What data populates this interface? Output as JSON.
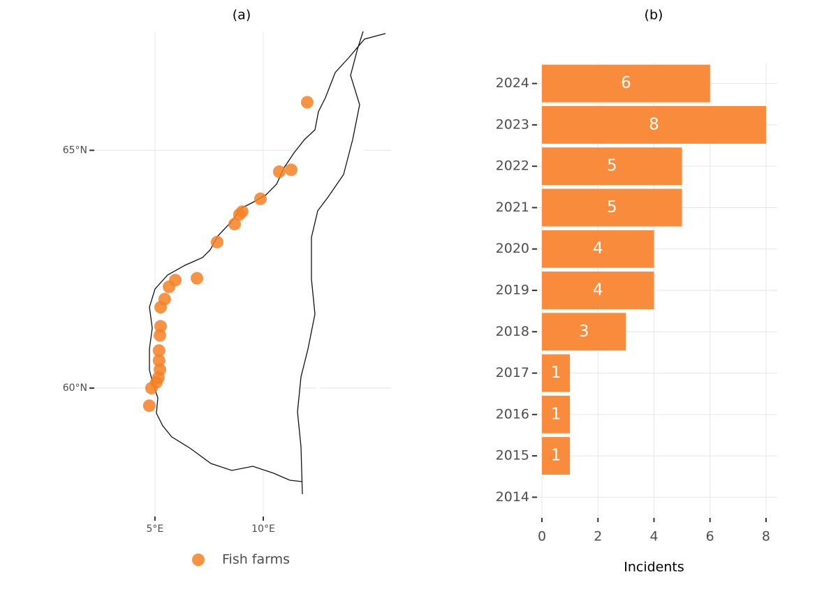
{
  "chart_data": [
    {
      "type": "scatter",
      "title": "(a)",
      "x": [
        12.03,
        10.74,
        11.29,
        9.87,
        9.03,
        8.9,
        8.68,
        7.87,
        6.94,
        5.94,
        5.65,
        5.45,
        5.26,
        5.26,
        5.23,
        5.19,
        5.19,
        5.23,
        5.16,
        5.06,
        4.84,
        4.74
      ],
      "series": [
        {
          "name": "Fish farms",
          "color": "#f58025",
          "values": [
            66.01,
            64.55,
            64.59,
            63.98,
            63.71,
            63.65,
            63.45,
            63.07,
            62.31,
            62.27,
            62.13,
            61.87,
            61.7,
            61.3,
            61.11,
            60.79,
            60.58,
            60.39,
            60.22,
            60.12,
            60.0,
            59.63
          ]
        }
      ],
      "xlim": [
        2.2,
        15.9
      ],
      "ylim": [
        57.3,
        67.5
      ],
      "xticks": [
        {
          "value": 5,
          "label": "5°E"
        },
        {
          "value": 10,
          "label": "10°E"
        }
      ],
      "yticks": [
        {
          "value": 60,
          "label": "60°N"
        },
        {
          "value": 65,
          "label": "65°N"
        }
      ],
      "grid": true,
      "legend": "bottom"
    },
    {
      "type": "barh",
      "title": "(b)",
      "x_label": "Incidents",
      "categories": [
        "2014",
        "2015",
        "2016",
        "2017",
        "2018",
        "2019",
        "2020",
        "2021",
        "2022",
        "2023",
        "2024"
      ],
      "values": [
        0,
        1,
        1,
        1,
        3,
        4,
        4,
        5,
        5,
        8,
        6
      ],
      "color": "#f98b3c",
      "xlim": [
        -0.4,
        8.4
      ],
      "xticks": [
        0,
        2,
        4,
        6,
        8
      ],
      "grid": true
    }
  ]
}
